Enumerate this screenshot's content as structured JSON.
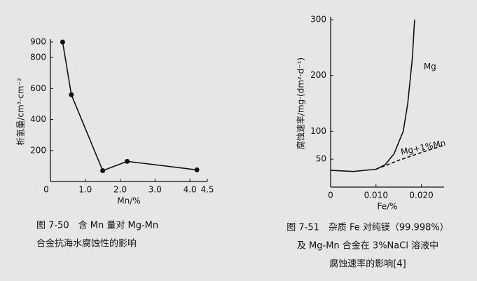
{
  "chart_data": [
    {
      "type": "line",
      "ylabel": "析氢量/cm³·cm⁻²",
      "xlabel": "Mn/%",
      "xlim": [
        0,
        4.5
      ],
      "ylim": [
        0,
        900
      ],
      "xticks": [
        0,
        {
          "value": 1,
          "label": "1.0"
        },
        {
          "value": 2,
          "label": "2.0"
        },
        {
          "value": 3,
          "label": "3.0"
        },
        {
          "value": 4,
          "label": "4.0"
        },
        4.5
      ],
      "yticks": [
        200,
        400,
        600,
        800,
        900
      ],
      "series": [
        {
          "color": "#111111",
          "linestyle": "solid",
          "markers": true,
          "x": [
            0.35,
            0.6,
            1.5,
            2.2,
            4.2
          ],
          "values": [
            900,
            560,
            70,
            130,
            75
          ]
        }
      ],
      "caption": [
        "图 7-50　含 Mn 量对 Mg-Mn",
        "合金抗海水腐蚀性的影响"
      ]
    },
    {
      "type": "line",
      "ylabel": "腐蚀速率/mg·(dm²·d⁻¹)",
      "xlabel": "Fe/%",
      "xlim": [
        0,
        0.025
      ],
      "ylim": [
        0,
        300
      ],
      "xticks": [
        0,
        {
          "value": 0.01,
          "label": "0.010"
        },
        {
          "value": 0.02,
          "label": "0.020"
        }
      ],
      "yticks": [
        50,
        100,
        200,
        300
      ],
      "series": [
        {
          "name": "Mg",
          "color": "#111111",
          "linestyle": "solid",
          "markers": false,
          "x": [
            0,
            0.005,
            0.01,
            0.012,
            0.014,
            0.016,
            0.017,
            0.018,
            0.0185
          ],
          "values": [
            30,
            28,
            32,
            40,
            60,
            100,
            150,
            230,
            300
          ]
        },
        {
          "name": "Mg+1%Mn",
          "color": "#111111",
          "linestyle": "dashed",
          "markers": false,
          "x": [
            0.01,
            0.015,
            0.02,
            0.025
          ],
          "values": [
            32,
            48,
            62,
            75
          ]
        }
      ],
      "caption": [
        "图 7-51　杂质 Fe 对纯镁（99.998%）",
        "及 Mg-Mn 合金在 3%NaCl 溶液中",
        "腐蚀速率的影响[4]"
      ]
    }
  ]
}
